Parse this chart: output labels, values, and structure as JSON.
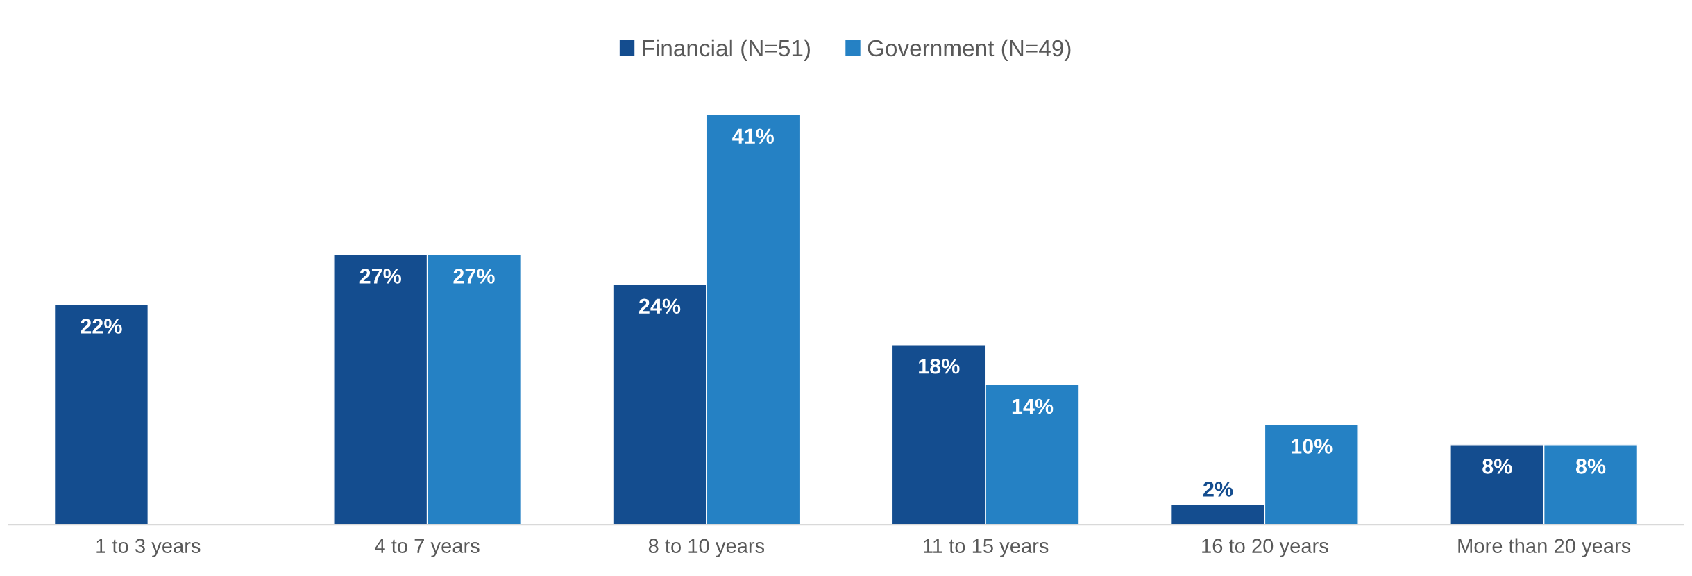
{
  "chart_data": {
    "type": "bar",
    "categories": [
      "1 to 3 years",
      "4 to 7 years",
      "8 to 10 years",
      "11 to 15 years",
      "16 to 20 years",
      "More than 20 years"
    ],
    "series": [
      {
        "name": "Financial (N=51)",
        "color": "#144d8f",
        "values": [
          22,
          27,
          24,
          18,
          2,
          8
        ],
        "value_labels": [
          "22%",
          "27%",
          "24%",
          "18%",
          "2%",
          "8%"
        ]
      },
      {
        "name": "Government (N=49)",
        "color": "#2581c4",
        "values": [
          null,
          27,
          41,
          14,
          10,
          8
        ],
        "value_labels": [
          null,
          "27%",
          "41%",
          "14%",
          "10%",
          "8%"
        ]
      }
    ],
    "legend": "top",
    "grid": false
  }
}
